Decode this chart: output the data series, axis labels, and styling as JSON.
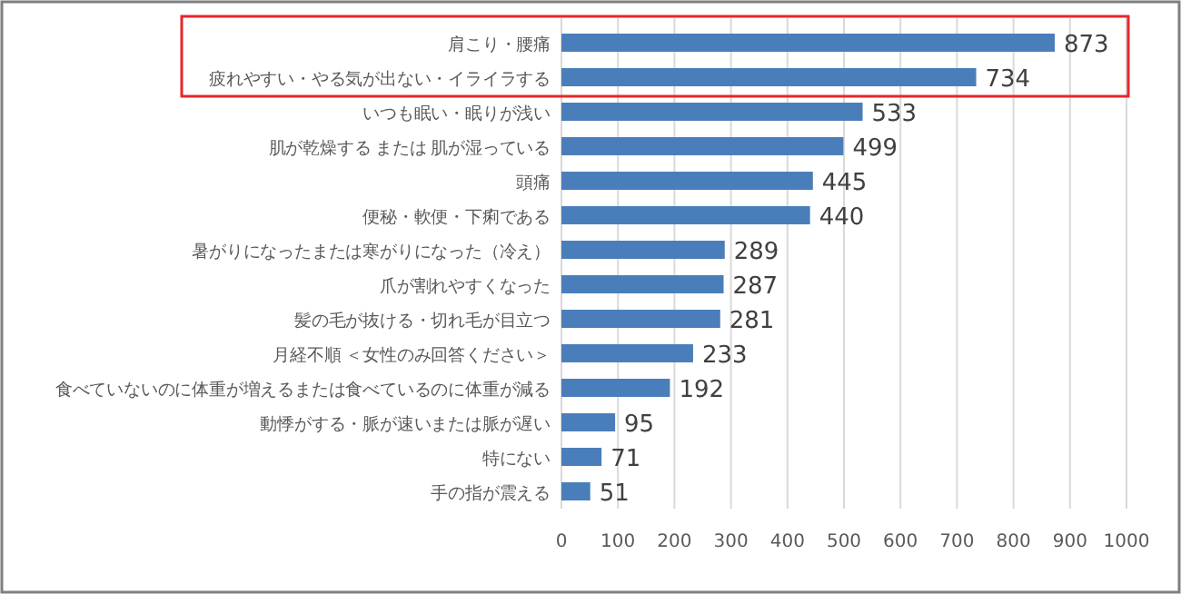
{
  "chart_data": {
    "type": "bar",
    "orientation": "horizontal",
    "categories": [
      "肩こり・腰痛",
      "疲れやすい・やる気が出ない・イライラする",
      "いつも眠い・眠りが浅い",
      "肌が乾燥する または 肌が湿っている",
      "頭痛",
      "便秘・軟便・下痢である",
      "暑がりになったまたは寒がりになった（冷え）",
      "爪が割れやすくなった",
      "髪の毛が抜ける・切れ毛が目立つ",
      "月経不順 ＜女性のみ回答ください＞",
      "食べていないのに体重が増えるまたは食べているのに体重が減る",
      "動悸がする・脈が速いまたは脈が遅い",
      "特にない",
      "手の指が震える"
    ],
    "values": [
      873,
      734,
      533,
      499,
      445,
      440,
      289,
      287,
      281,
      233,
      192,
      95,
      71,
      51
    ],
    "color": "#4a7ebb",
    "data_labels": true,
    "grid": "x",
    "xlim": [
      0,
      1000
    ],
    "xticks": [
      0,
      100,
      200,
      300,
      400,
      500,
      600,
      700,
      800,
      900,
      1000
    ]
  }
}
